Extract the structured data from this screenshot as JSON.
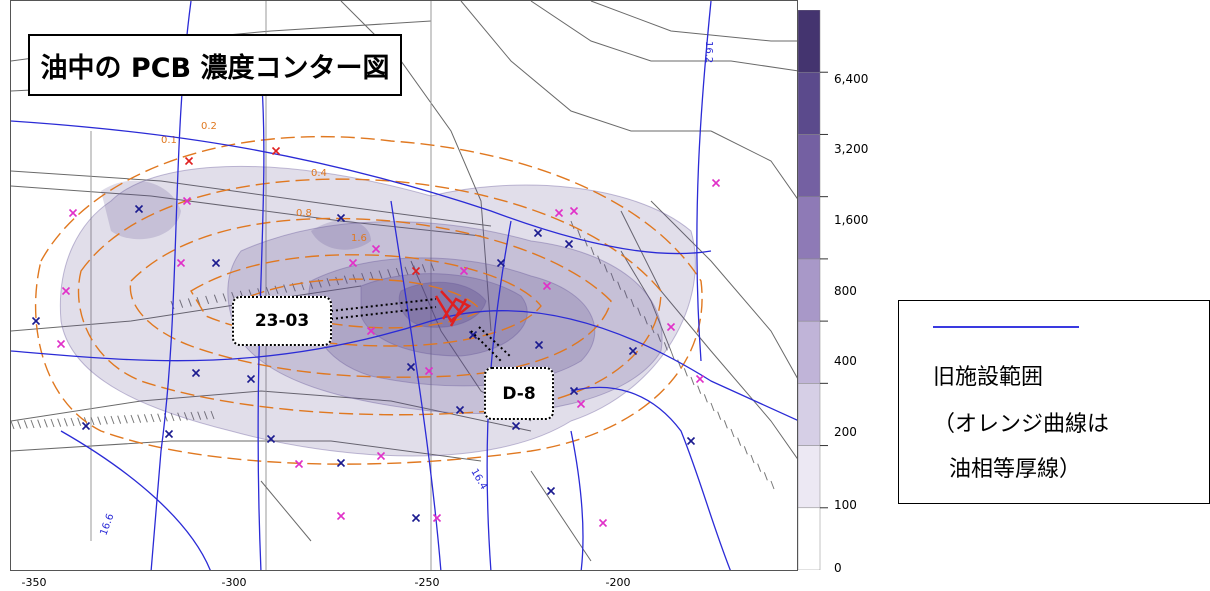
{
  "map": {
    "title": "油中の PCB 濃度コンター図",
    "callouts": {
      "well_a": "23-03",
      "well_b": "D-8"
    },
    "contour_labels": [
      "0.1",
      "0.2",
      "0.4",
      "0.8",
      "1.6"
    ],
    "facility_labels": [
      "16.2",
      "16.4",
      "16.6"
    ],
    "x_axis": {
      "ticks": [
        "-350",
        "-300",
        "-250",
        "-200"
      ],
      "range": [
        -355,
        -165
      ]
    },
    "colors": {
      "plume": "#5b4a8c",
      "oil_isopach": "#e07820",
      "facility": "#2b2bd6",
      "marker_blue": "#1b1b8f",
      "marker_magenta": "#e030c8",
      "marker_red": "#e02020"
    }
  },
  "colorbar": {
    "levels": [
      "0",
      "100",
      "200",
      "400",
      "800",
      "1,600",
      "3,200",
      "6,400"
    ],
    "fills": [
      "#ffffff",
      "#ece8f3",
      "#d6cfe6",
      "#c0b4d8",
      "#a898c8",
      "#8e7ab6",
      "#7460a2",
      "#5b4a8c",
      "#44346f"
    ]
  },
  "legend": {
    "line_color": "#3a3ae0",
    "line1": "旧施設範囲",
    "line2": "（オレンジ曲線は",
    "line3": "油相等厚線）"
  }
}
